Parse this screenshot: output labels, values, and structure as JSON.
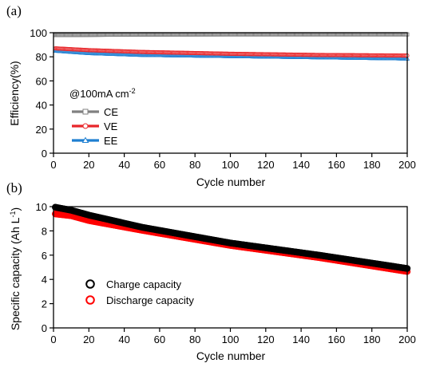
{
  "chart_data": [
    {
      "panel_label": "(a)",
      "type": "scatter",
      "xlabel": "Cycle number",
      "ylabel": "Efficiency(%)",
      "xlim": [
        0,
        200
      ],
      "ylim": [
        0,
        100
      ],
      "xticks": [
        0,
        20,
        40,
        60,
        80,
        100,
        120,
        140,
        160,
        180,
        200
      ],
      "yticks": [
        0,
        20,
        40,
        60,
        80,
        100
      ],
      "legend_title": "@100mA cm",
      "legend_title_sup": "-2",
      "legend_position": "center-left",
      "series": [
        {
          "name": "CE",
          "color": "#808080",
          "marker": "square",
          "x": [
            1,
            50,
            100,
            150,
            200
          ],
          "y": [
            98,
            98.5,
            98.6,
            98.6,
            98.6
          ]
        },
        {
          "name": "VE",
          "color": "#e8262a",
          "marker": "circle",
          "x": [
            1,
            20,
            50,
            100,
            150,
            200
          ],
          "y": [
            87,
            85.5,
            84,
            82.5,
            81.5,
            81
          ]
        },
        {
          "name": "EE",
          "color": "#1e7fd1",
          "marker": "triangle",
          "x": [
            1,
            20,
            50,
            100,
            150,
            200
          ],
          "y": [
            85,
            83,
            81.5,
            80.5,
            79.5,
            78.5
          ]
        }
      ]
    },
    {
      "panel_label": "(b)",
      "type": "scatter",
      "xlabel": "Cycle number",
      "ylabel": "Specific capacity (Ah L",
      "ylabel_sup": "-1",
      "ylabel_end": ")",
      "xlim": [
        0,
        200
      ],
      "ylim": [
        0,
        10
      ],
      "xticks": [
        0,
        20,
        40,
        60,
        80,
        100,
        120,
        140,
        160,
        180,
        200
      ],
      "yticks": [
        0,
        2,
        4,
        6,
        8,
        10
      ],
      "legend_position": "center-left",
      "series": [
        {
          "name": "Charge capacity",
          "color": "#000000",
          "marker": "open-circle",
          "x": [
            1,
            10,
            20,
            50,
            100,
            150,
            200
          ],
          "y": [
            9.95,
            9.7,
            9.3,
            8.3,
            7.0,
            6.0,
            4.9
          ]
        },
        {
          "name": "Discharge capacity",
          "color": "#ff0000",
          "marker": "open-circle",
          "x": [
            1,
            10,
            20,
            50,
            100,
            150,
            200
          ],
          "y": [
            9.4,
            9.25,
            8.85,
            8.05,
            6.8,
            5.8,
            4.65
          ]
        }
      ]
    }
  ]
}
